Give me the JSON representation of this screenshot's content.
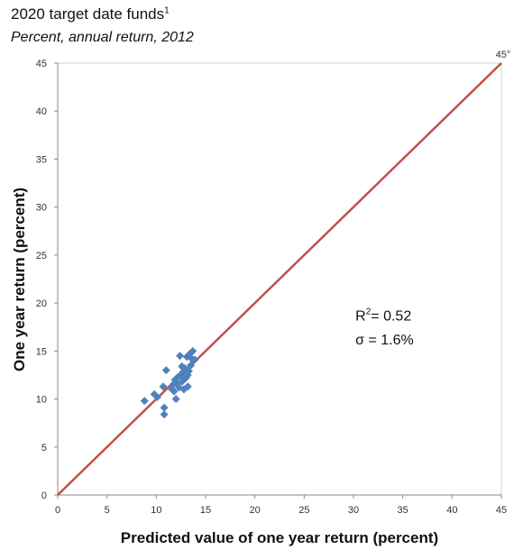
{
  "chart_data": {
    "type": "scatter",
    "title": "2020 target date funds",
    "title_footnote": "1",
    "subtitle": "Percent, annual return, 2012",
    "xlabel": "Predicted value of one year return (percent)",
    "ylabel": "One year return (percent)",
    "xlim": [
      0,
      45
    ],
    "ylim": [
      0,
      45
    ],
    "xticks": [
      "0",
      "5",
      "10",
      "15",
      "20",
      "25",
      "30",
      "35",
      "40",
      "45"
    ],
    "yticks": [
      "0",
      "5",
      "10",
      "15",
      "20",
      "25",
      "30",
      "35",
      "40",
      "45"
    ],
    "grid": false,
    "reference_line": {
      "label": "45°",
      "from": [
        0,
        0
      ],
      "to": [
        45,
        45
      ],
      "color": "#C0504D"
    },
    "marker_color": "#4F81BD",
    "annotations": [
      {
        "text_prefix": "R",
        "text_sup": "2",
        "text_suffix": "= 0.52",
        "x": 30.2,
        "y": 18.2
      },
      {
        "text": "σ = 1.6%",
        "x": 30.2,
        "y": 15.7
      }
    ],
    "points": [
      {
        "x": 8.8,
        "y": 9.8
      },
      {
        "x": 9.8,
        "y": 10.5
      },
      {
        "x": 10.1,
        "y": 10.2
      },
      {
        "x": 10.7,
        "y": 11.3
      },
      {
        "x": 10.8,
        "y": 8.4
      },
      {
        "x": 10.8,
        "y": 9.1
      },
      {
        "x": 11.0,
        "y": 13.0
      },
      {
        "x": 11.6,
        "y": 11.0
      },
      {
        "x": 11.7,
        "y": 11.5
      },
      {
        "x": 11.8,
        "y": 10.8
      },
      {
        "x": 11.9,
        "y": 12.0
      },
      {
        "x": 12.0,
        "y": 10.0
      },
      {
        "x": 12.1,
        "y": 11.6
      },
      {
        "x": 12.2,
        "y": 12.3
      },
      {
        "x": 12.3,
        "y": 11.2
      },
      {
        "x": 12.4,
        "y": 14.5
      },
      {
        "x": 12.5,
        "y": 12.5
      },
      {
        "x": 12.6,
        "y": 11.8
      },
      {
        "x": 12.7,
        "y": 12.8
      },
      {
        "x": 12.8,
        "y": 11.0
      },
      {
        "x": 12.9,
        "y": 13.2
      },
      {
        "x": 13.0,
        "y": 12.2
      },
      {
        "x": 13.1,
        "y": 14.4
      },
      {
        "x": 13.2,
        "y": 11.3
      },
      {
        "x": 13.3,
        "y": 12.9
      },
      {
        "x": 13.4,
        "y": 14.7
      },
      {
        "x": 13.5,
        "y": 13.5
      },
      {
        "x": 13.6,
        "y": 14.2
      },
      {
        "x": 13.7,
        "y": 15.0
      },
      {
        "x": 13.9,
        "y": 14.1
      },
      {
        "x": 13.2,
        "y": 12.5
      },
      {
        "x": 12.6,
        "y": 13.4
      }
    ]
  }
}
